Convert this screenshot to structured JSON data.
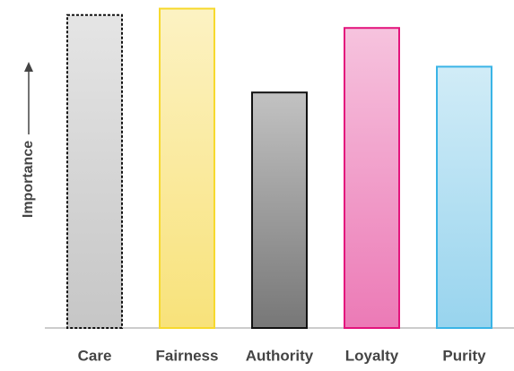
{
  "chart_data": {
    "type": "bar",
    "y_label": "Importance",
    "categories": [
      "Care",
      "Fairness",
      "Authority",
      "Loyalty",
      "Purity"
    ],
    "values": [
      97,
      99,
      73,
      93,
      81
    ],
    "colors": [
      "#c6c6c6",
      "#f8e27a",
      "#777777",
      "#ec7ab6",
      "#98d4ee"
    ],
    "edge_colors": [
      "#111111",
      "#f7d92e",
      "#111111",
      "#e3147c",
      "#3ab4e6"
    ],
    "edge_dashed": [
      true,
      false,
      false,
      false,
      false
    ],
    "ylim": [
      0,
      100
    ]
  }
}
